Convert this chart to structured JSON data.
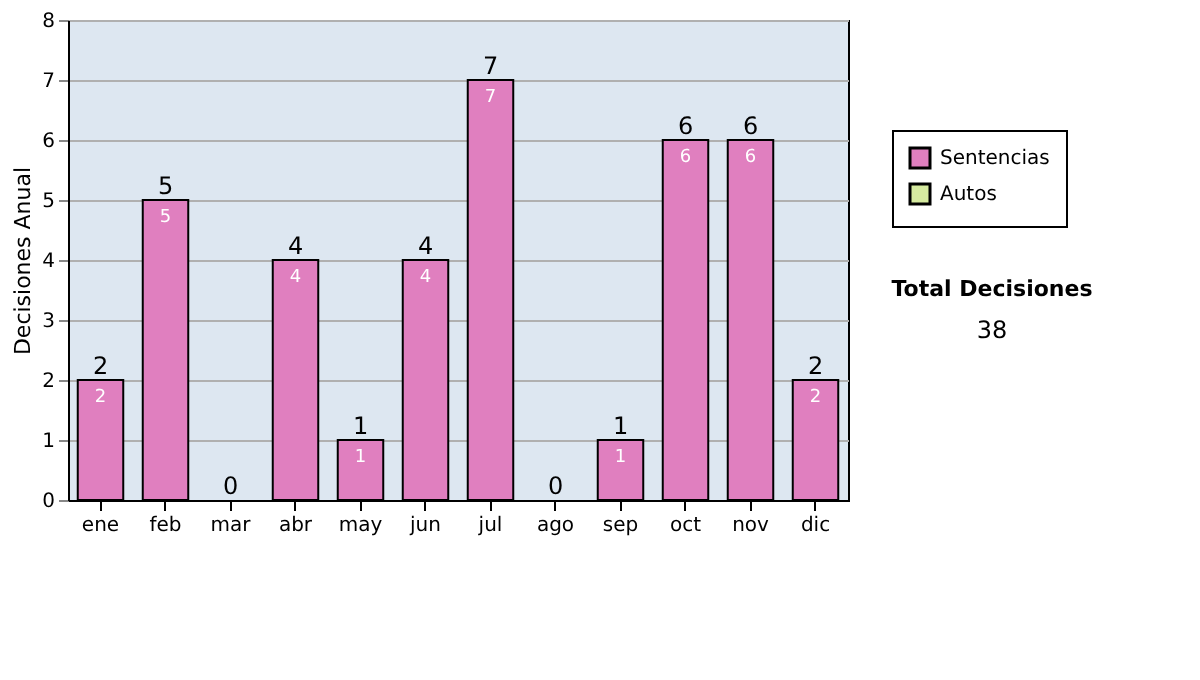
{
  "chart_data": {
    "type": "bar",
    "stacked": true,
    "ylabel": "Decisiones Anual",
    "categories": [
      "ene",
      "feb",
      "mar",
      "abr",
      "may",
      "jun",
      "jul",
      "ago",
      "sep",
      "oct",
      "nov",
      "dic"
    ],
    "series": [
      {
        "name": "Sentencias",
        "color": "#e07fbf",
        "values": [
          2,
          5,
          0,
          4,
          1,
          4,
          7,
          0,
          1,
          6,
          6,
          2
        ],
        "value_labels": [
          "2",
          "5",
          null,
          "4",
          "1",
          "4",
          "7",
          null,
          "1",
          "6",
          "6",
          "2"
        ]
      },
      {
        "name": "Autos",
        "color": "#d6eba0",
        "values": [
          0,
          0,
          0,
          0,
          0,
          0,
          0,
          0,
          0,
          0,
          0,
          0
        ]
      }
    ],
    "totals": [
      "2",
      "5",
      "0",
      "4",
      "1",
      "4",
      "7",
      "0",
      "1",
      "6",
      "6",
      "2"
    ],
    "ylim": [
      0,
      8
    ],
    "yticks": [
      0,
      1,
      2,
      3,
      4,
      5,
      6,
      7,
      8
    ],
    "grid": "y",
    "legend": "right",
    "annotations": [
      "Total Decisiones",
      "38"
    ]
  }
}
